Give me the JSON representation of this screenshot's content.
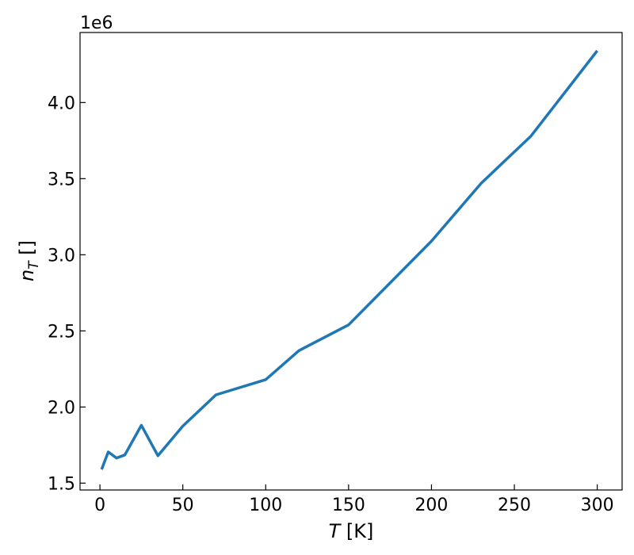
{
  "chart_data": {
    "type": "line",
    "xlabel_symbol": "T",
    "xlabel_unit": " [K]",
    "ylabel_symbol": "n",
    "ylabel_subscript": "T",
    "ylabel_unit": " []",
    "y_offset_label": "1e6",
    "xlim": [
      -12,
      315
    ],
    "ylim": [
      1455000,
      4460000
    ],
    "x_ticks": [
      0,
      50,
      100,
      150,
      200,
      250,
      300
    ],
    "x_tick_labels": [
      "0",
      "50",
      "100",
      "150",
      "200",
      "250",
      "300"
    ],
    "y_ticks": [
      1500000,
      2000000,
      2500000,
      3000000,
      3500000,
      4000000
    ],
    "y_tick_labels": [
      "1.5",
      "2.0",
      "2.5",
      "3.0",
      "3.5",
      "4.0"
    ],
    "grid": false,
    "series": [
      {
        "color": "#1f77b4",
        "x": [
          1,
          5,
          10,
          15,
          25,
          35,
          50,
          70,
          100,
          120,
          150,
          200,
          230,
          260,
          300
        ],
        "y": [
          1590000,
          1705000,
          1665000,
          1685000,
          1880000,
          1680000,
          1875000,
          2080000,
          2180000,
          2370000,
          2540000,
          3090000,
          3470000,
          3780000,
          4340000
        ]
      }
    ]
  }
}
